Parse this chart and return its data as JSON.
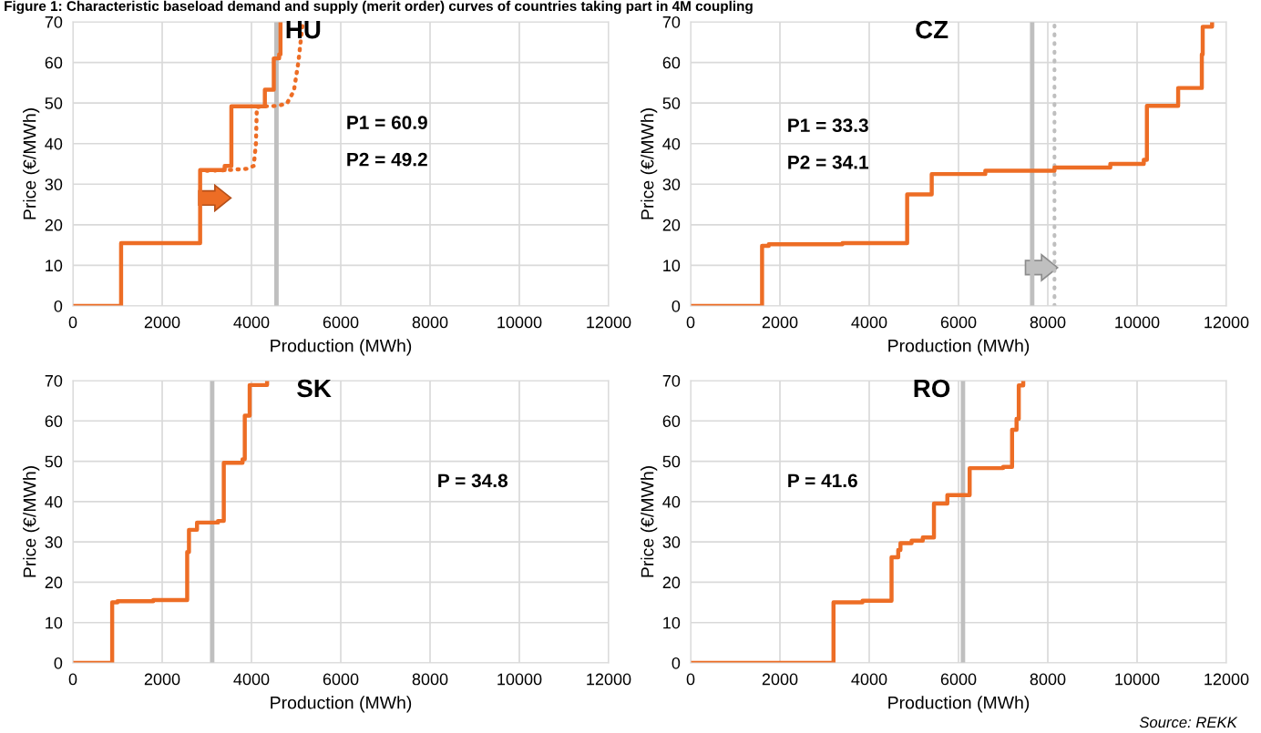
{
  "chart_data": [
    {
      "type": "step",
      "title": "Figure 1: Characteristic baseload demand and supply (merit order) curves of countries taking part in 4M coupling",
      "xlabel": "Production (MWh)",
      "ylabel": "Price (€/MWh)",
      "xlim": [
        0,
        12000
      ],
      "ylim": [
        0,
        70
      ],
      "xticks": [
        0,
        2000,
        4000,
        6000,
        8000,
        10000,
        12000
      ],
      "yticks": [
        0,
        10,
        20,
        30,
        40,
        50,
        60,
        70
      ],
      "grid": true,
      "annotations": [
        "HU",
        "P1 = 60.9",
        "P2 = 49.2"
      ],
      "series": [
        {
          "color": "#ed6d25",
          "line_style": "solid",
          "x": [
            0,
            1080,
            2850,
            3400,
            3550,
            4300,
            4500,
            4620,
            4650
          ],
          "values": [
            0,
            15.5,
            33.5,
            34.5,
            49.2,
            53.3,
            61,
            62,
            70
          ]
        },
        {
          "type": "line",
          "color": "#ed6d25",
          "line_style": "dotted",
          "x": [
            3000,
            3500,
            3900,
            4050,
            4100,
            4120,
            4300,
            4600,
            4800,
            4950,
            5050,
            5100,
            5150
          ],
          "values": [
            33.3,
            33.5,
            33.8,
            34.5,
            40,
            49,
            49.2,
            49.3,
            50,
            53,
            60,
            65,
            70
          ]
        }
      ],
      "ref_lines": [
        {
          "axis": "x",
          "value": 4560,
          "color": "#bfbfbf",
          "line_style": "solid"
        }
      ]
    },
    {
      "type": "step",
      "xlabel": "Production (MWh)",
      "ylabel": "Price (€/MWh)",
      "xlim": [
        0,
        12000
      ],
      "ylim": [
        0,
        70
      ],
      "xticks": [
        0,
        2000,
        4000,
        6000,
        8000,
        10000,
        12000
      ],
      "yticks": [
        0,
        10,
        20,
        30,
        40,
        50,
        60,
        70
      ],
      "grid": true,
      "annotations": [
        "CZ",
        "P1 = 33.3",
        "P2 = 34.1"
      ],
      "series": [
        {
          "color": "#ed6d25",
          "line_style": "solid",
          "x": [
            0,
            1600,
            1750,
            3400,
            4850,
            5400,
            6600,
            8150,
            9400,
            10150,
            10220,
            10920,
            11450,
            11470,
            11680
          ],
          "values": [
            0,
            14.8,
            15.2,
            15.5,
            27.5,
            32.5,
            33.3,
            34.1,
            35,
            36,
            49.3,
            53.7,
            62,
            68.8,
            70
          ]
        }
      ],
      "ref_lines": [
        {
          "axis": "x",
          "value": 7650,
          "color": "#bfbfbf",
          "line_style": "solid"
        },
        {
          "axis": "x",
          "value": 8150,
          "color": "#bfbfbf",
          "line_style": "dotted"
        }
      ]
    },
    {
      "type": "step",
      "xlabel": "Production (MWh)",
      "ylabel": "Price (€/MWh)",
      "xlim": [
        0,
        12000
      ],
      "ylim": [
        0,
        70
      ],
      "xticks": [
        0,
        2000,
        4000,
        6000,
        8000,
        10000,
        12000
      ],
      "yticks": [
        0,
        10,
        20,
        30,
        40,
        50,
        60,
        70
      ],
      "grid": true,
      "annotations": [
        "SK",
        "P = 34.8"
      ],
      "series": [
        {
          "color": "#ed6d25",
          "line_style": "solid",
          "x": [
            0,
            880,
            1000,
            1800,
            2560,
            2600,
            2780,
            3250,
            3380,
            3800,
            3850,
            3960,
            4350
          ],
          "values": [
            0,
            15,
            15.3,
            15.6,
            27.5,
            33,
            34.8,
            35.2,
            49.6,
            50.5,
            61.3,
            68.9,
            70
          ]
        }
      ],
      "ref_lines": [
        {
          "axis": "x",
          "value": 3120,
          "color": "#bfbfbf",
          "line_style": "solid"
        }
      ]
    },
    {
      "type": "step",
      "xlabel": "Production (MWh)",
      "ylabel": "Price (€/MWh)",
      "xlim": [
        0,
        12000
      ],
      "ylim": [
        0,
        70
      ],
      "xticks": [
        0,
        2000,
        4000,
        6000,
        8000,
        10000,
        12000
      ],
      "yticks": [
        0,
        10,
        20,
        30,
        40,
        50,
        60,
        70
      ],
      "grid": true,
      "annotations": [
        "RO",
        "P = 41.6",
        "Source: REKK"
      ],
      "series": [
        {
          "color": "#ed6d25",
          "line_style": "solid",
          "x": [
            0,
            3200,
            3850,
            4500,
            4650,
            4700,
            4950,
            5200,
            5450,
            5750,
            6250,
            7000,
            7200,
            7300,
            7350,
            7450
          ],
          "values": [
            0,
            15,
            15.4,
            26.2,
            28,
            29.7,
            30.3,
            31.1,
            39.5,
            41.6,
            48.3,
            48.6,
            57.8,
            60.5,
            68.8,
            70
          ]
        }
      ],
      "ref_lines": [
        {
          "axis": "x",
          "value": 6100,
          "color": "#bfbfbf",
          "line_style": "solid"
        }
      ]
    }
  ]
}
